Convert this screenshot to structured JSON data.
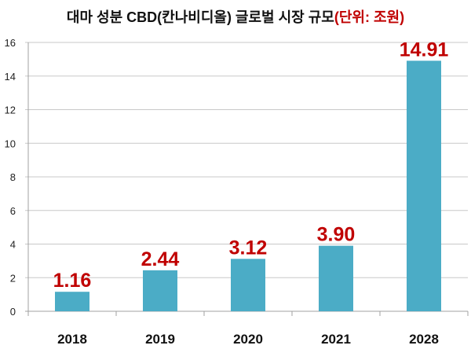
{
  "chart_data": {
    "type": "bar",
    "title": "대마 성분 CBD(칸나비디올) 글로벌 시장 규모",
    "title_unit": "(단위: 조원)",
    "categories": [
      "2018",
      "2019",
      "2020",
      "2021",
      "2028"
    ],
    "values": [
      1.16,
      2.44,
      3.12,
      3.9,
      14.91
    ],
    "data_labels": [
      "1.16",
      "2.44",
      "3.12",
      "3.90",
      "14.91"
    ],
    "xlabel": "",
    "ylabel": "",
    "ylim": [
      0,
      16
    ],
    "yticks": [
      0,
      2,
      4,
      6,
      8,
      10,
      12,
      14,
      16
    ],
    "grid": true,
    "legend": "none",
    "colors": {
      "bar": "#4bacc6",
      "label": "#c00000",
      "grid": "#c8c8c8"
    }
  }
}
